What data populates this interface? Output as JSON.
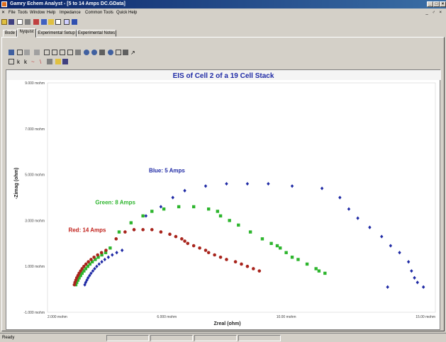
{
  "window": {
    "title": "Gamry Echem Analyst - [5 to 14 Amps DC.GData]",
    "buttons": [
      "_",
      "□",
      "×"
    ]
  },
  "menu": [
    "File",
    "Tools",
    "Window",
    "Help",
    "Impedance",
    "Common Tools",
    "Quick Help"
  ],
  "menu_right": "_ ♂ ×",
  "tabs": [
    "Bode",
    "Nyquist",
    "Experimental Setup",
    "Experimental Notes"
  ],
  "active_tab": "Nyquist",
  "status": {
    "left": "Ready"
  },
  "chart_data": {
    "type": "scatter",
    "title": "EIS of Cell 2 of a 19 Cell Stack",
    "xlabel": "Zreal (ohm)",
    "ylabel": "-Zimag (ohm)",
    "xlim": [
      0.002,
      0.015
    ],
    "ylim": [
      -0.001,
      0.009
    ],
    "xticks": [
      {
        "v": 0.002,
        "label": "2.000 mohm"
      },
      {
        "v": 0.006,
        "label": "6.000 mohm"
      },
      {
        "v": 0.01,
        "label": "10.00 mohm"
      },
      {
        "v": 0.015,
        "label": "15.00 mohm"
      }
    ],
    "yticks": [
      {
        "v": 0.009,
        "label": "9.000 mohm"
      },
      {
        "v": 0.007,
        "label": "7.000 mohm"
      },
      {
        "v": 0.005,
        "label": "5.000 mohm"
      },
      {
        "v": 0.003,
        "label": "3.000 mohm"
      },
      {
        "v": 0.001,
        "label": "1.000 mohm"
      },
      {
        "v": -0.001,
        "label": "-1.000 mohm"
      }
    ],
    "grid": false,
    "annotations": [
      {
        "text": "Blue: 5 Amps",
        "color": "#1f2aa5",
        "x": 0.0054,
        "y": 0.0051
      },
      {
        "text": "Green: 8 Amps",
        "color": "#2db52d",
        "x": 0.0036,
        "y": 0.0037
      },
      {
        "text": "Red: 14 Amps",
        "color": "#c0201a",
        "x": 0.0027,
        "y": 0.0025
      }
    ],
    "series": [
      {
        "color": "#1f2aa5",
        "marker": "diamond",
        "x": [
          0.00325,
          0.00328,
          0.00332,
          0.00336,
          0.00341,
          0.00346,
          0.00352,
          0.00358,
          0.00365,
          0.00373,
          0.00382,
          0.00392,
          0.00404,
          0.00417,
          0.00432,
          0.0045,
          0.0049,
          0.0053,
          0.0058,
          0.0062,
          0.0066,
          0.0073,
          0.008,
          0.0087,
          0.0094,
          0.0102,
          0.0112,
          0.0118,
          0.0121,
          0.0124,
          0.0128,
          0.0132,
          0.0135,
          0.0138,
          0.0141,
          0.0142,
          0.0143,
          0.0144,
          0.0146,
          0.0134
        ],
        "y": [
          0.0002,
          0.0003,
          0.0004,
          0.0005,
          0.0006,
          0.0007,
          0.0008,
          0.0009,
          0.001,
          0.0011,
          0.0012,
          0.0013,
          0.0014,
          0.0015,
          0.0016,
          0.0017,
          0.0026,
          0.0032,
          0.0036,
          0.004,
          0.0043,
          0.0045,
          0.0046,
          0.0046,
          0.0046,
          0.0045,
          0.0044,
          0.004,
          0.0035,
          0.0031,
          0.0027,
          0.0023,
          0.0019,
          0.0016,
          0.0012,
          0.0008,
          0.0005,
          0.0003,
          0.0001,
          0.0001
        ]
      },
      {
        "color": "#2db52d",
        "marker": "square",
        "x": [
          0.00295,
          0.00298,
          0.00302,
          0.00306,
          0.00311,
          0.00316,
          0.00322,
          0.00328,
          0.00335,
          0.00342,
          0.0035,
          0.0036,
          0.0037,
          0.00382,
          0.00395,
          0.0041,
          0.0044,
          0.0048,
          0.0052,
          0.0055,
          0.0059,
          0.0064,
          0.0069,
          0.0074,
          0.0077,
          0.0078,
          0.0081,
          0.0084,
          0.0088,
          0.0092,
          0.0095,
          0.0097,
          0.0098,
          0.01,
          0.0102,
          0.0104,
          0.0107,
          0.011,
          0.0111,
          0.0113
        ],
        "y": [
          0.0002,
          0.0003,
          0.0004,
          0.0005,
          0.0006,
          0.0007,
          0.0008,
          0.0009,
          0.001,
          0.0011,
          0.0012,
          0.0013,
          0.0014,
          0.0015,
          0.0016,
          0.0018,
          0.0025,
          0.0029,
          0.0032,
          0.0034,
          0.0035,
          0.0036,
          0.0036,
          0.0035,
          0.0034,
          0.0032,
          0.003,
          0.0028,
          0.0025,
          0.0022,
          0.002,
          0.0019,
          0.0018,
          0.0016,
          0.0014,
          0.0013,
          0.0011,
          0.0009,
          0.0008,
          0.0007
        ]
      },
      {
        "color": "#a8241c",
        "marker": "circle",
        "x": [
          0.0029,
          0.00292,
          0.00295,
          0.00298,
          0.00302,
          0.00306,
          0.00311,
          0.00316,
          0.00322,
          0.00329,
          0.00337,
          0.00346,
          0.00356,
          0.00368,
          0.00381,
          0.00396,
          0.0043,
          0.0046,
          0.0049,
          0.0052,
          0.0055,
          0.0058,
          0.0061,
          0.0063,
          0.0065,
          0.0066,
          0.0067,
          0.0069,
          0.0071,
          0.0073,
          0.0074,
          0.0076,
          0.0078,
          0.008,
          0.0083,
          0.0085,
          0.0087,
          0.0089,
          0.0091
        ],
        "y": [
          0.0002,
          0.0003,
          0.0004,
          0.0005,
          0.0006,
          0.0007,
          0.0008,
          0.0009,
          0.001,
          0.0011,
          0.0012,
          0.0013,
          0.0014,
          0.0015,
          0.0016,
          0.0017,
          0.0022,
          0.0025,
          0.0026,
          0.0026,
          0.0026,
          0.0025,
          0.0024,
          0.0023,
          0.0022,
          0.0021,
          0.002,
          0.0019,
          0.0018,
          0.0017,
          0.0016,
          0.0015,
          0.0014,
          0.0013,
          0.0012,
          0.0011,
          0.001,
          0.0009,
          0.0008
        ]
      }
    ]
  }
}
